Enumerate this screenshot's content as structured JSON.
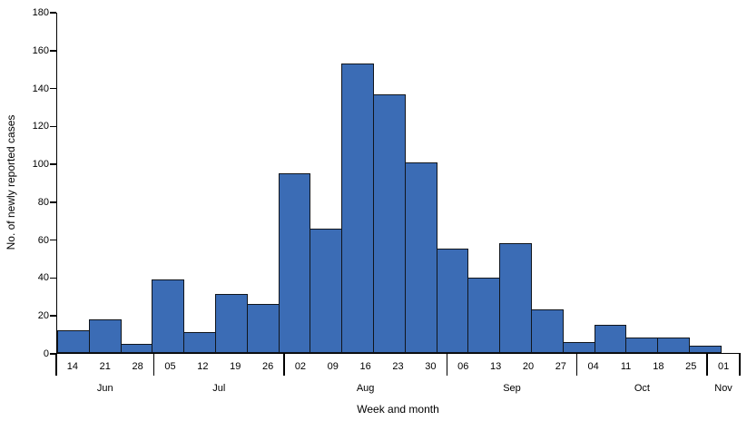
{
  "chart_data": {
    "type": "bar",
    "title": "",
    "xlabel": "Week and month",
    "ylabel": "No. of newly reported cases",
    "ylim": [
      0,
      180
    ],
    "ytick_step": 20,
    "yticks": [
      0,
      20,
      40,
      60,
      80,
      100,
      120,
      140,
      160,
      180
    ],
    "bar_color": "#3B6CB5",
    "bar_border_color": "#10151C",
    "legend": "none",
    "grid": "off",
    "weeks": [
      "14",
      "21",
      "28",
      "05",
      "12",
      "19",
      "26",
      "02",
      "09",
      "16",
      "23",
      "30",
      "06",
      "13",
      "20",
      "27",
      "04",
      "11",
      "18",
      "25",
      "01"
    ],
    "values": [
      12,
      18,
      5,
      39,
      11,
      31,
      26,
      95,
      66,
      153,
      137,
      101,
      55,
      40,
      58,
      23,
      6,
      15,
      8,
      8,
      4
    ],
    "month_groups": [
      {
        "label": "Jun",
        "weeks": 3
      },
      {
        "label": "Jul",
        "weeks": 4
      },
      {
        "label": "Aug",
        "weeks": 5
      },
      {
        "label": "Sep",
        "weeks": 4
      },
      {
        "label": "Oct",
        "weeks": 4
      },
      {
        "label": "Nov",
        "weeks": 1
      }
    ]
  }
}
